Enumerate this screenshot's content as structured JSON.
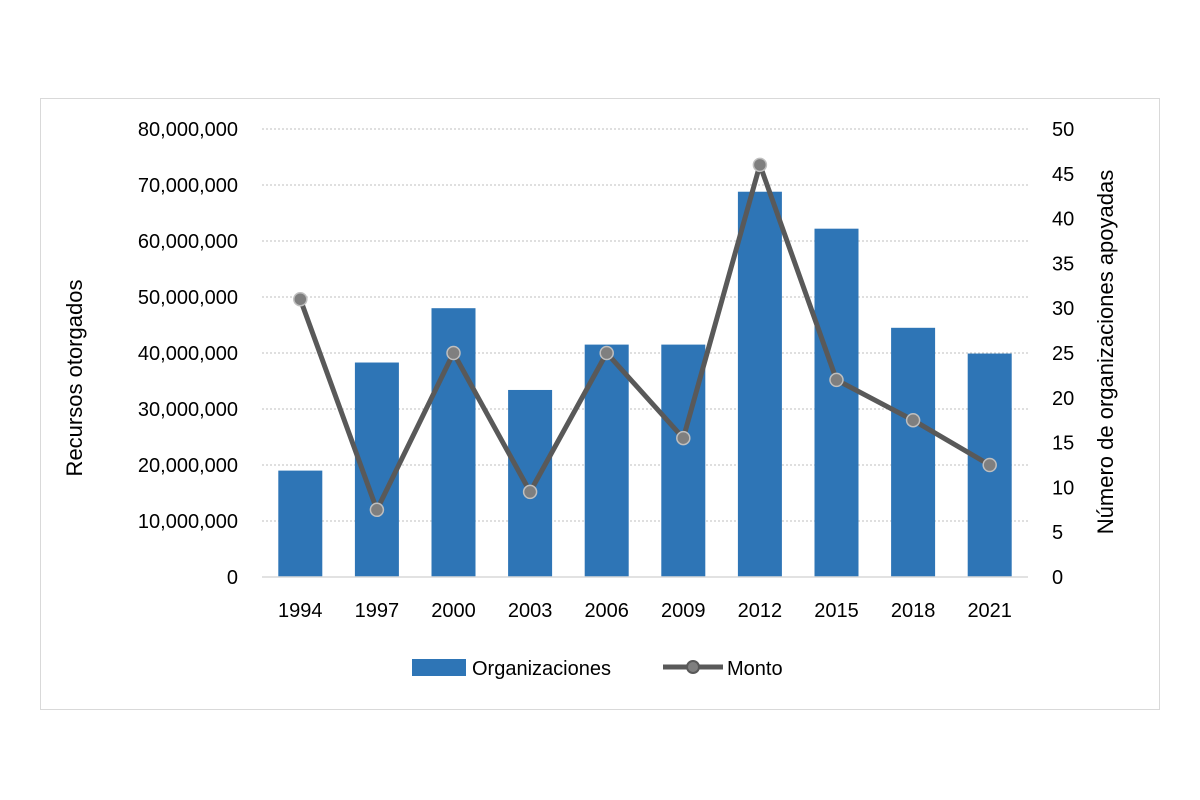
{
  "chart_data": {
    "type": "bar",
    "title": "",
    "categories": [
      "1994",
      "1997",
      "2000",
      "2003",
      "2006",
      "2009",
      "2012",
      "2015",
      "2018",
      "2021"
    ],
    "series": [
      {
        "name": "Organizaciones",
        "type": "bar",
        "axis": "left",
        "color": "#2e75b6",
        "values": [
          19000000,
          38300000,
          48000000,
          33400000,
          41500000,
          41500000,
          68800000,
          62200000,
          44500000,
          39900000
        ]
      },
      {
        "name": "Monto",
        "type": "line",
        "axis": "right",
        "color": "#595959",
        "marker_color": "#7f7f7f",
        "values": [
          31,
          7.5,
          25,
          9.5,
          25,
          15.5,
          46,
          22,
          17.5,
          12.5
        ]
      }
    ],
    "ylabel": "Recursos otorgados",
    "ylim": [
      0,
      80000000
    ],
    "yticks": [
      "0",
      "10,000,000",
      "20,000,000",
      "30,000,000",
      "40,000,000",
      "50,000,000",
      "60,000,000",
      "70,000,000",
      "80,000,000"
    ],
    "y2label": "Número de organizaciones apoyadas",
    "y2lim": [
      0,
      50
    ],
    "y2ticks": [
      "0",
      "5",
      "10",
      "15",
      "20",
      "25",
      "30",
      "35",
      "40",
      "45",
      "50"
    ],
    "grid": true,
    "legend_position": "bottom"
  }
}
